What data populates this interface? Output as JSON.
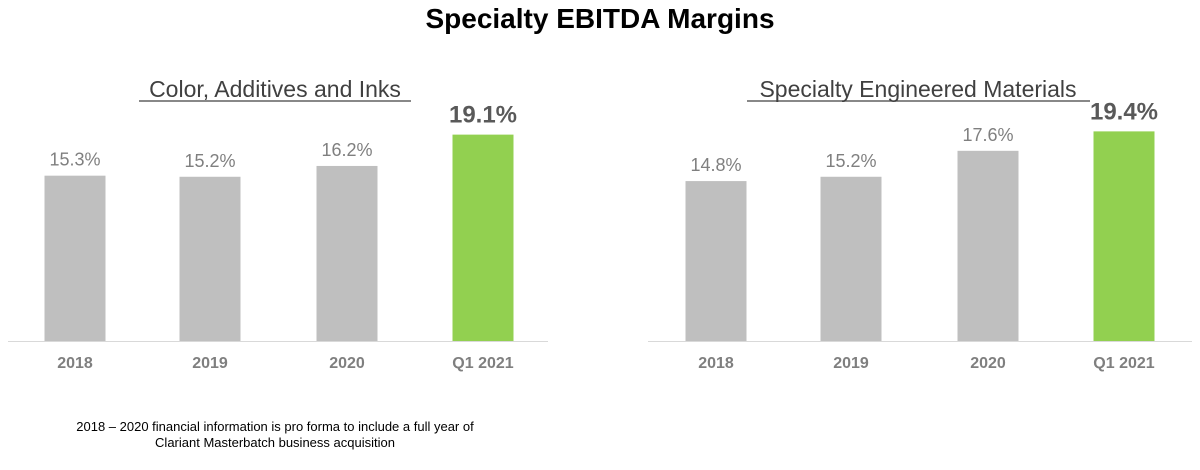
{
  "title": "Specialty EBITDA Margins",
  "footnote": {
    "line1": "2018 – 2020 financial information is pro forma to include a full year of",
    "line2": "Clariant Masterbatch business acquisition"
  },
  "colors": {
    "bar_default": "#bfbfbf",
    "bar_highlight": "#92d050",
    "label_default": "#7f7f7f",
    "label_highlight": "#595959",
    "baseline": "#d9d9d9"
  },
  "chart_data": [
    {
      "type": "bar",
      "title": "Color, Additives and Inks",
      "categories": [
        "2018",
        "2019",
        "2020",
        "Q1 2021"
      ],
      "values": [
        15.3,
        15.2,
        16.2,
        19.1
      ],
      "data_labels": [
        "15.3%",
        "15.2%",
        "16.2%",
        "19.1%"
      ],
      "highlight_index": 3,
      "ylim": [
        0,
        23.6
      ],
      "grid": false,
      "xlabel": "",
      "ylabel": ""
    },
    {
      "type": "bar",
      "title": "Specialty Engineered Materials",
      "categories": [
        "2018",
        "2019",
        "2020",
        "Q1 2021"
      ],
      "values": [
        14.8,
        15.2,
        17.6,
        19.4
      ],
      "data_labels": [
        "14.8%",
        "15.2%",
        "17.6%",
        "19.4%"
      ],
      "highlight_index": 3,
      "ylim": [
        0,
        23.6
      ],
      "grid": false,
      "xlabel": "",
      "ylabel": ""
    }
  ]
}
